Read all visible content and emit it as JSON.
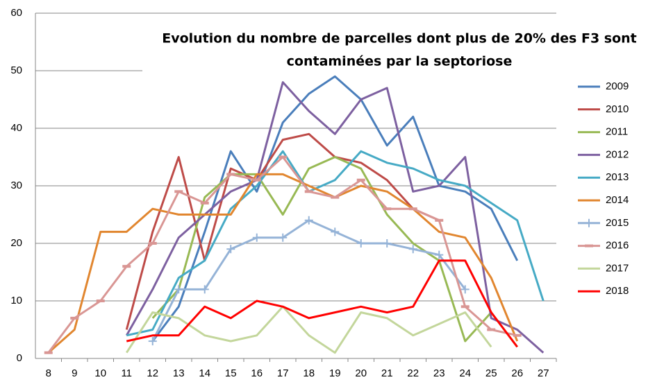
{
  "chart_data": {
    "type": "line",
    "title": [
      "Evolution du nombre de parcelles dont plus de 20% des F3 sont",
      "contaminées par la septoriose"
    ],
    "categories": [
      "8",
      "9",
      "10",
      "11",
      "12",
      "13",
      "14",
      "15",
      "16",
      "17",
      "18",
      "19",
      "20",
      "21",
      "22",
      "23",
      "24",
      "25",
      "26",
      "27"
    ],
    "ylim": [
      0,
      60
    ],
    "yticks": [
      0,
      10,
      20,
      30,
      40,
      50,
      60
    ],
    "grid": true,
    "legend": "right",
    "series": [
      {
        "name": "2009",
        "color": "#4a7ebb",
        "values": [
          null,
          null,
          null,
          null,
          3,
          9,
          22,
          36,
          29,
          41,
          46,
          49,
          45,
          37,
          42,
          30,
          29,
          26,
          17,
          null
        ]
      },
      {
        "name": "2010",
        "color": "#be4b48",
        "values": [
          null,
          null,
          null,
          5,
          22,
          35,
          17,
          33,
          31,
          38,
          39,
          35,
          34,
          31,
          26,
          24,
          null,
          null,
          null,
          null
        ]
      },
      {
        "name": "2011",
        "color": "#98b954",
        "values": [
          null,
          null,
          null,
          null,
          7,
          12,
          28,
          32,
          32,
          25,
          33,
          35,
          33,
          25,
          20,
          17,
          3,
          8,
          2,
          null
        ]
      },
      {
        "name": "2012",
        "color": "#7d60a0",
        "values": [
          null,
          null,
          null,
          4,
          12,
          21,
          25,
          29,
          31,
          48,
          43,
          39,
          45,
          47,
          29,
          30,
          35,
          7,
          5,
          1
        ]
      },
      {
        "name": "2013",
        "color": "#46aac5",
        "values": [
          null,
          null,
          null,
          4,
          5,
          14,
          17,
          26,
          30,
          36,
          29,
          31,
          36,
          34,
          33,
          31,
          30,
          27,
          24,
          10
        ]
      },
      {
        "name": "2014",
        "color": "#e1862f",
        "values": [
          1,
          5,
          22,
          22,
          26,
          25,
          25,
          25,
          32,
          32,
          30,
          28,
          30,
          29,
          26,
          22,
          21,
          14,
          3,
          null
        ]
      },
      {
        "name": "2015",
        "color": "#95b3d7",
        "marker": "plus",
        "values": [
          null,
          null,
          null,
          null,
          3,
          12,
          12,
          19,
          21,
          21,
          24,
          22,
          20,
          20,
          19,
          18,
          12,
          null,
          null,
          null
        ]
      },
      {
        "name": "2016",
        "color": "#d99694",
        "marker": "dash",
        "values": [
          1,
          7,
          10,
          16,
          20,
          29,
          27,
          32,
          31,
          35,
          29,
          28,
          31,
          26,
          26,
          24,
          9,
          5,
          4,
          null
        ]
      },
      {
        "name": "2017",
        "color": "#c3d69b",
        "values": [
          null,
          null,
          null,
          1,
          8,
          7,
          4,
          3,
          4,
          9,
          4,
          1,
          8,
          7,
          4,
          6,
          8,
          2,
          null,
          null
        ]
      },
      {
        "name": "2018",
        "color": "#ff0000",
        "values": [
          null,
          null,
          null,
          3,
          4,
          4,
          9,
          7,
          10,
          9,
          7,
          8,
          9,
          8,
          9,
          17,
          17,
          8,
          2,
          null
        ]
      }
    ]
  }
}
